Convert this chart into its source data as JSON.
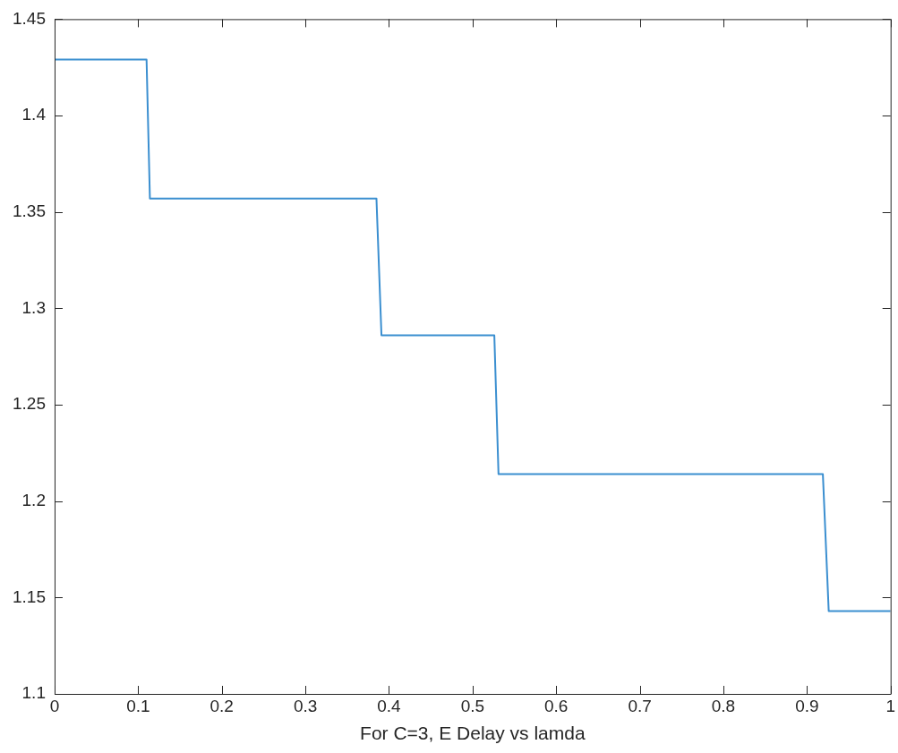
{
  "chart_data": {
    "type": "line",
    "xlabel": "For C=3, E Delay vs lamda",
    "series": [
      {
        "color": "#3b8fd0",
        "x": [
          0,
          0.11,
          0.114,
          0.385,
          0.391,
          0.526,
          0.531,
          0.919,
          0.926,
          1
        ],
        "values": [
          1.429,
          1.429,
          1.357,
          1.357,
          1.286,
          1.286,
          1.214,
          1.214,
          1.143,
          1.143
        ]
      }
    ],
    "xlim": [
      0,
      1
    ],
    "xticks": [
      0,
      0.1,
      0.2,
      0.3,
      0.4,
      0.5,
      0.6,
      0.7,
      0.8,
      0.9,
      1
    ],
    "ylim": [
      1.1,
      1.45
    ],
    "yticks": [
      1.1,
      1.15,
      1.2,
      1.25,
      1.3,
      1.35,
      1.4,
      1.45
    ],
    "grid": false,
    "legend": false,
    "marker": "none",
    "line_style": "solid"
  }
}
